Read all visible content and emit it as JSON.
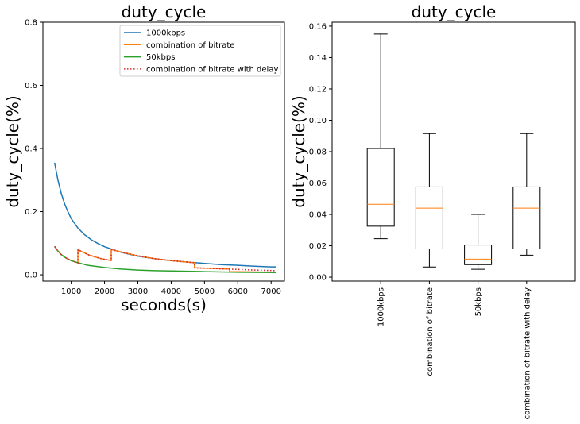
{
  "chart_data": [
    {
      "type": "line",
      "title": "duty_cycle",
      "xlabel": "seconds(s)",
      "ylabel": "duty_cycle(%)",
      "xlim": [
        150,
        7400
      ],
      "ylim": [
        -0.02,
        0.8
      ],
      "xticks": [
        1000,
        2000,
        3000,
        4000,
        5000,
        6000,
        7000
      ],
      "yticks": [
        0.0,
        0.2,
        0.4,
        0.6,
        0.8
      ],
      "xtick_labels": [
        "1000",
        "2000",
        "3000",
        "4000",
        "5000",
        "6000",
        "7000"
      ],
      "ytick_labels": [
        "0.0",
        "0.2",
        "0.4",
        "0.6",
        "0.8"
      ],
      "legend_position": "top-right",
      "series": [
        {
          "name": "1000kbps",
          "color": "#1f77b4",
          "style": "solid",
          "x": [
            500,
            600,
            700,
            800,
            900,
            1000,
            1200,
            1400,
            1600,
            1800,
            2000,
            2500,
            3000,
            3500,
            4000,
            4500,
            5000,
            5500,
            6000,
            6500,
            7000,
            7150
          ],
          "y": [
            0.355,
            0.3,
            0.258,
            0.225,
            0.2,
            0.178,
            0.148,
            0.127,
            0.111,
            0.099,
            0.089,
            0.071,
            0.059,
            0.051,
            0.045,
            0.04,
            0.036,
            0.032,
            0.03,
            0.027,
            0.025,
            0.025
          ]
        },
        {
          "name": "combination of bitrate",
          "color": "#ff7f0e",
          "style": "solid",
          "x": [
            500,
            600,
            700,
            800,
            900,
            1000,
            1100,
            1200,
            1201,
            1300,
            1500,
            1700,
            1900,
            2100,
            2200,
            2201,
            2500,
            3000,
            3500,
            4000,
            4500,
            4700,
            4701,
            5000,
            5500,
            5750,
            5751,
            6500,
            7150
          ],
          "y": [
            0.09,
            0.075,
            0.064,
            0.056,
            0.05,
            0.045,
            0.041,
            0.038,
            0.08,
            0.074,
            0.064,
            0.057,
            0.051,
            0.047,
            0.045,
            0.08,
            0.072,
            0.06,
            0.051,
            0.045,
            0.04,
            0.038,
            0.022,
            0.021,
            0.019,
            0.018,
            0.01,
            0.009,
            0.008
          ]
        },
        {
          "name": "50kbps",
          "color": "#2ca02c",
          "style": "solid",
          "x": [
            500,
            600,
            700,
            800,
            900,
            1000,
            1200,
            1500,
            2000,
            2500,
            3000,
            3500,
            4000,
            5000,
            6000,
            7150
          ],
          "y": [
            0.09,
            0.075,
            0.064,
            0.056,
            0.05,
            0.045,
            0.038,
            0.03,
            0.023,
            0.018,
            0.015,
            0.013,
            0.012,
            0.01,
            0.008,
            0.007
          ]
        },
        {
          "name": "combination of bitrate with delay",
          "color": "#d62728",
          "style": "dotted",
          "x": [
            500,
            600,
            700,
            800,
            900,
            1000,
            1100,
            1200,
            1201,
            1300,
            1500,
            1700,
            1900,
            2100,
            2200,
            2201,
            2500,
            3000,
            3500,
            4000,
            4500,
            4700,
            4701,
            5000,
            5500,
            6000,
            6500,
            7150
          ],
          "y": [
            0.09,
            0.075,
            0.064,
            0.056,
            0.05,
            0.045,
            0.041,
            0.038,
            0.08,
            0.074,
            0.064,
            0.057,
            0.051,
            0.047,
            0.045,
            0.08,
            0.072,
            0.06,
            0.051,
            0.045,
            0.04,
            0.038,
            0.022,
            0.021,
            0.019,
            0.017,
            0.015,
            0.013
          ]
        }
      ]
    },
    {
      "type": "box",
      "title": "duty_cycle",
      "xlabel": "",
      "ylabel": "duty_cycle(%)",
      "ylim": [
        -0.0025,
        0.1625
      ],
      "yticks": [
        0.0,
        0.02,
        0.04,
        0.06,
        0.08,
        0.1,
        0.12,
        0.14,
        0.16
      ],
      "ytick_labels": [
        "0.00",
        "0.02",
        "0.04",
        "0.06",
        "0.08",
        "0.10",
        "0.12",
        "0.14",
        "0.16"
      ],
      "median_color": "#ff7f0e",
      "categories": [
        "1000kbps",
        "combination of bitrate",
        "50kbps",
        "combination of bitrate with delay"
      ],
      "boxes": [
        {
          "whisker_low": 0.0245,
          "q1": 0.0325,
          "median": 0.0465,
          "q3": 0.082,
          "whisker_high": 0.155
        },
        {
          "whisker_low": 0.0065,
          "q1": 0.018,
          "median": 0.044,
          "q3": 0.0575,
          "whisker_high": 0.0915
        },
        {
          "whisker_low": 0.005,
          "q1": 0.008,
          "median": 0.0115,
          "q3": 0.0205,
          "whisker_high": 0.04
        },
        {
          "whisker_low": 0.014,
          "q1": 0.018,
          "median": 0.044,
          "q3": 0.0575,
          "whisker_high": 0.0915
        }
      ]
    }
  ]
}
